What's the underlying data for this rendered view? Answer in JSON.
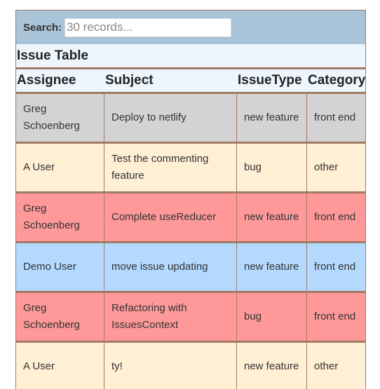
{
  "search": {
    "label": "Search:",
    "placeholder": "30 records..."
  },
  "table": {
    "title": "Issue Table",
    "headers": [
      "Assignee",
      "Subject",
      "IssueType",
      "Category"
    ],
    "rows": [
      {
        "assignee": "Greg Schoenberg",
        "subject": "Deploy to netlify",
        "issuetype": "new feature",
        "category": "front end",
        "color": "#d3d3d3"
      },
      {
        "assignee": "A User",
        "subject": "Test the commenting feature",
        "issuetype": "bug",
        "category": "other",
        "color": "#ffefd5"
      },
      {
        "assignee": "Greg Schoenberg",
        "subject": "Complete useReducer",
        "issuetype": "new feature",
        "category": "front end",
        "color": "#ff9999"
      },
      {
        "assignee": "Demo User",
        "subject": "move issue updating",
        "issuetype": "new feature",
        "category": "front end",
        "color": "#b3d9ff"
      },
      {
        "assignee": "Greg Schoenberg",
        "subject": "Refactoring with IssuesContext",
        "issuetype": "bug",
        "category": "front end",
        "color": "#ff9999"
      },
      {
        "assignee": "A User",
        "subject": "ty!",
        "issuetype": "new feature",
        "category": "other",
        "color": "#ffefd5"
      }
    ]
  }
}
